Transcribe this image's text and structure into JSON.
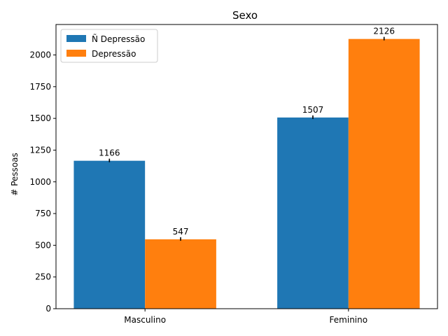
{
  "chart_data": {
    "type": "bar",
    "title": "Sexo",
    "xlabel": "",
    "ylabel": "# Pessoas",
    "categories": [
      "Masculino",
      "Feminino"
    ],
    "series": [
      {
        "name": "Ñ Depressão",
        "values": [
          1166,
          1507
        ],
        "color": "#1f77b4"
      },
      {
        "name": "Depressão",
        "values": [
          547,
          2126
        ],
        "color": "#ff7f0e"
      }
    ],
    "ylim": [
      0,
      2240
    ],
    "yticks": [
      0,
      250,
      500,
      750,
      1000,
      1250,
      1500,
      1750,
      2000
    ],
    "grid": false,
    "legend_position": "top-left",
    "error_bars": true,
    "data_labels": true
  }
}
